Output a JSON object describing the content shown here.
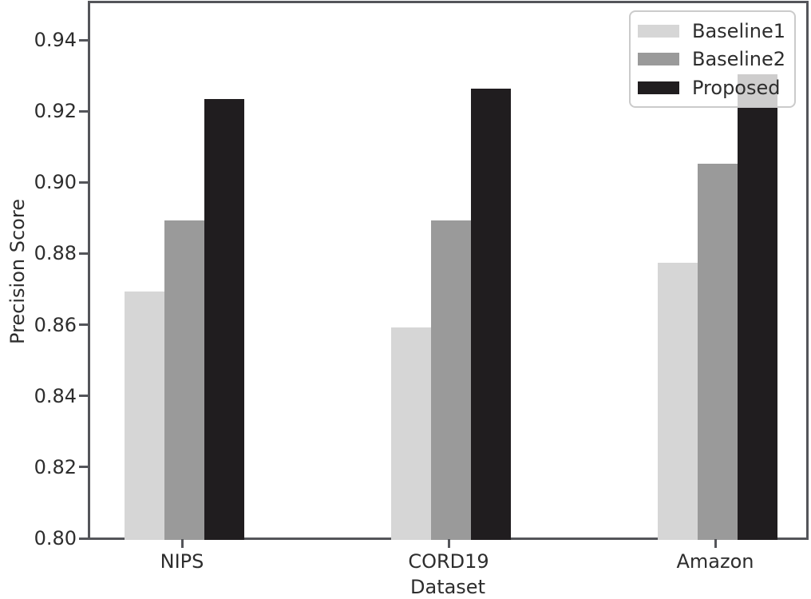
{
  "chart_data": {
    "type": "bar",
    "title": "",
    "xlabel": "Dataset",
    "ylabel": "Precision Score",
    "categories": [
      "NIPS",
      "CORD19",
      "Amazon"
    ],
    "series": [
      {
        "name": "Baseline1",
        "color": "#d6d6d6",
        "values": [
          0.87,
          0.86,
          0.878
        ]
      },
      {
        "name": "Baseline2",
        "color": "#9a9a9a",
        "values": [
          0.89,
          0.89,
          0.906
        ]
      },
      {
        "name": "Proposed",
        "color": "#201d1f",
        "values": [
          0.924,
          0.927,
          0.931
        ]
      }
    ],
    "ylim": [
      0.8,
      0.95
    ],
    "yticks": [
      0.8,
      0.82,
      0.84,
      0.86,
      0.88,
      0.9,
      0.92,
      0.94
    ],
    "grid": false,
    "legend_position": "upper right",
    "axis_color": "#54555a",
    "text_color": "#2d2d2d",
    "background_color": "#ffffff"
  }
}
